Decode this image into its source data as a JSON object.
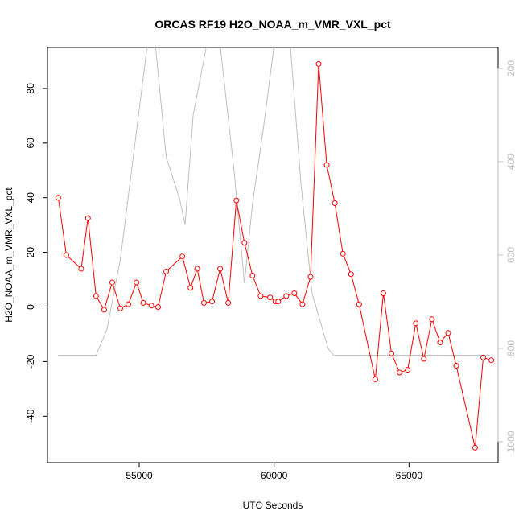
{
  "chart_data": {
    "type": "line",
    "title": "ORCAS RF19 H2O_NOAA_m_VMR_VXL_pct",
    "xlabel": "UTC Seconds",
    "ylabel": "H2O_NOAA_m_VMR_VXL_pct",
    "xlim": [
      51600,
      68300
    ],
    "ylim": [
      -57,
      95
    ],
    "x_ticks": [
      55000,
      60000,
      65000
    ],
    "x_tick_labels": [
      "55000",
      "60000",
      "65000"
    ],
    "y_ticks": [
      -40,
      -20,
      0,
      20,
      40,
      60,
      80
    ],
    "y_tick_labels": [
      "-40",
      "-20",
      "0",
      "20",
      "40",
      "60",
      "80"
    ],
    "y2lim": [
      1045,
      155
    ],
    "y2_ticks": [
      200,
      400,
      600,
      800,
      1000
    ],
    "y2_tick_labels": [
      "200",
      "400",
      "600",
      "800",
      "1000"
    ],
    "grid": false,
    "colors": {
      "primary": "#ff0000",
      "secondary": "#bebebe"
    },
    "series": [
      {
        "axis": "left",
        "style": "line+points",
        "x": [
          52000,
          52300,
          52850,
          53100,
          53400,
          53700,
          54000,
          54300,
          54600,
          54900,
          55150,
          55450,
          55700,
          56000,
          56600,
          56900,
          57150,
          57400,
          57700,
          58000,
          58300,
          58600,
          58900,
          59200,
          59500,
          59850,
          60050,
          60150,
          60450,
          60750,
          61050,
          61350,
          61650,
          61950,
          62250,
          62550,
          62850,
          63150,
          63750,
          64050,
          64350,
          64650,
          64950,
          65250,
          65550,
          65850,
          66150,
          66450,
          66750,
          67450,
          67750,
          68050
        ],
        "y": [
          40,
          19,
          14,
          32.5,
          4,
          -1,
          9,
          -0.5,
          1,
          9,
          1.5,
          0.5,
          0,
          13,
          18.5,
          7,
          14,
          1.5,
          2,
          14,
          1.5,
          39,
          23.5,
          11.5,
          4,
          3.5,
          2,
          2,
          4,
          5,
          1,
          11,
          89,
          52,
          38,
          19.5,
          12,
          1,
          -26.5,
          5,
          -17,
          -24,
          -23,
          -6,
          -19,
          -4.5,
          -13,
          -9.5,
          -21.5,
          -51.5,
          -18.5,
          -19.5
        ]
      },
      {
        "axis": "right",
        "style": "line",
        "x": [
          52000,
          53000,
          53400,
          53800,
          54300,
          54800,
          55300,
          55600,
          56000,
          56500,
          56700,
          57000,
          57500,
          58000,
          58500,
          58900,
          59200,
          59600,
          60000,
          60300,
          60600,
          61000,
          61400,
          62000,
          62200,
          68000
        ],
        "y": [
          815,
          815,
          815,
          760,
          610,
          380,
          150,
          150,
          390,
          480,
          535,
          300,
          150,
          150,
          410,
          660,
          490,
          330,
          150,
          150,
          150,
          450,
          680,
          800,
          815,
          815
        ]
      }
    ]
  }
}
